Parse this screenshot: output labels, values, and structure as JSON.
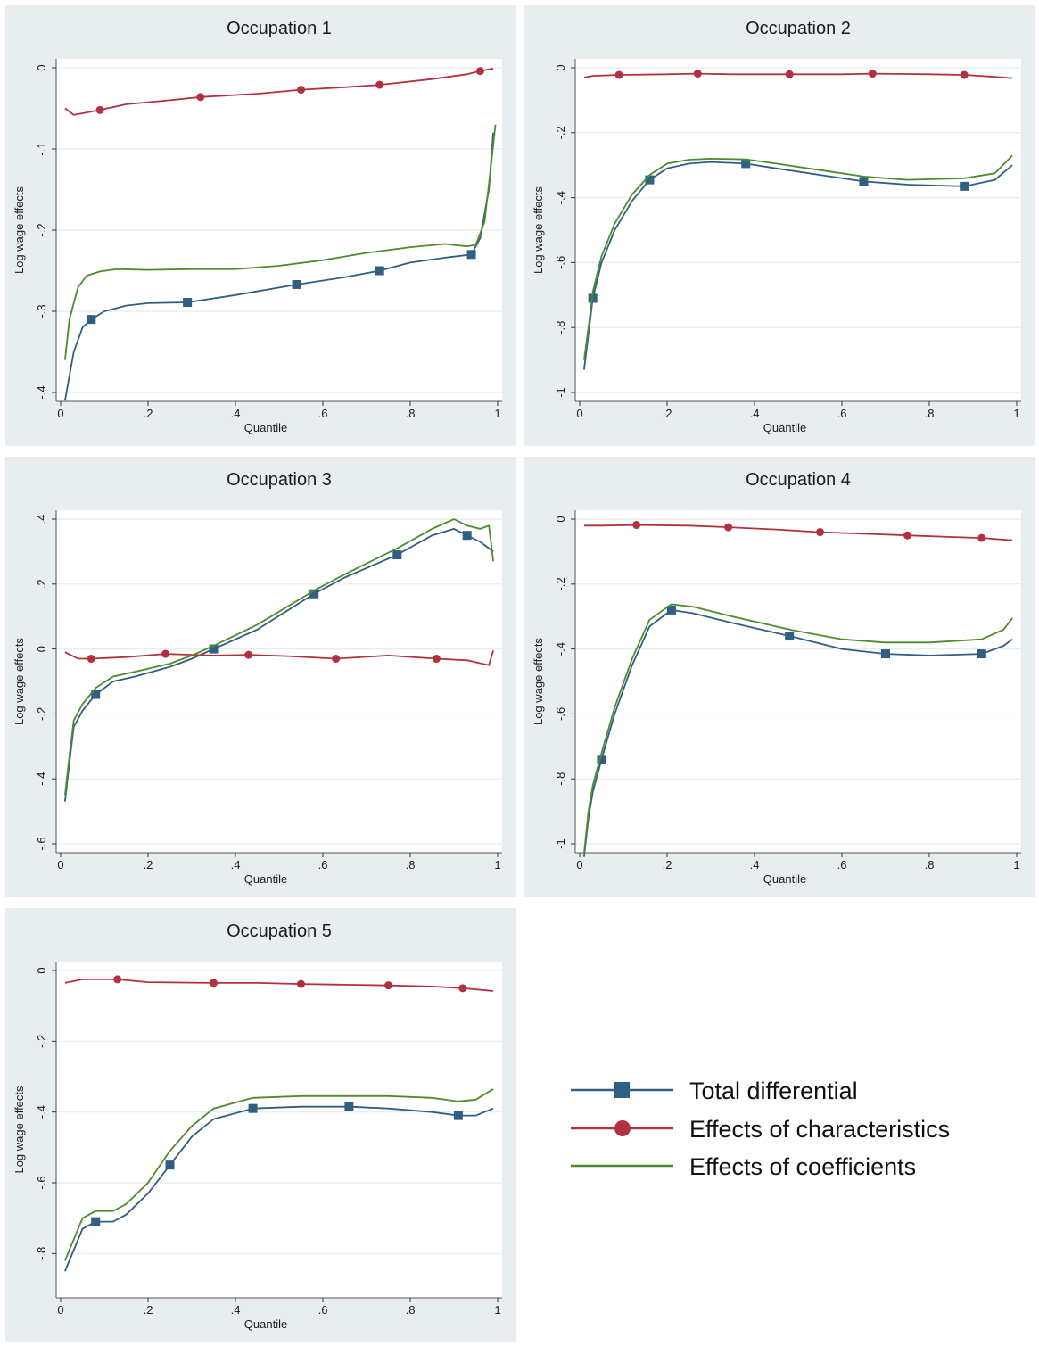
{
  "colors": {
    "panel_bg": "#e8eef0",
    "plot_bg": "#ffffff",
    "grid": "#e6ecef",
    "total": "#2f5f83",
    "characteristics": "#b2313f",
    "coefficients": "#4f8a2c"
  },
  "legend": {
    "items": [
      {
        "label": "Total differential",
        "marker": "square",
        "series": "total"
      },
      {
        "label": "Effects of characteristics",
        "marker": "circle",
        "series": "characteristics"
      },
      {
        "label": "Effects of coefficients",
        "marker": "none",
        "series": "coefficients"
      }
    ]
  },
  "chart_data": [
    {
      "type": "line",
      "title": "Occupation 1",
      "xlabel": "Quantile",
      "ylabel": "Log wage effects",
      "xlim": [
        0,
        1
      ],
      "ylim": [
        -0.4,
        0
      ],
      "xticks": [
        0,
        0.2,
        0.4,
        0.6,
        0.8,
        1
      ],
      "xtick_labels": [
        "0",
        ".2",
        ".4",
        ".6",
        ".8",
        "1"
      ],
      "yticks": [
        0,
        -0.1,
        -0.2,
        -0.3,
        -0.4
      ],
      "ytick_labels": [
        "0",
        "-.1",
        "-.2",
        "-.3",
        "-.4"
      ],
      "grid": true,
      "series": [
        {
          "key": "total",
          "marker": "square",
          "markers_at": [
            0.07,
            0.29,
            0.54,
            0.73,
            0.94
          ],
          "x": [
            0.01,
            0.03,
            0.05,
            0.07,
            0.1,
            0.15,
            0.2,
            0.29,
            0.4,
            0.54,
            0.65,
            0.73,
            0.8,
            0.88,
            0.94,
            0.96,
            0.98,
            0.99
          ],
          "y": [
            -0.41,
            -0.35,
            -0.32,
            -0.31,
            -0.3,
            -0.293,
            -0.29,
            -0.289,
            -0.28,
            -0.267,
            -0.258,
            -0.25,
            -0.24,
            -0.234,
            -0.23,
            -0.21,
            -0.15,
            -0.08
          ]
        },
        {
          "key": "characteristics",
          "marker": "circle",
          "markers_at": [
            0.09,
            0.32,
            0.55,
            0.73,
            0.96
          ],
          "x": [
            0.01,
            0.03,
            0.06,
            0.09,
            0.15,
            0.25,
            0.32,
            0.45,
            0.55,
            0.65,
            0.73,
            0.85,
            0.93,
            0.96,
            0.99
          ],
          "y": [
            -0.05,
            -0.058,
            -0.055,
            -0.052,
            -0.045,
            -0.04,
            -0.036,
            -0.032,
            -0.027,
            -0.024,
            -0.021,
            -0.014,
            -0.008,
            -0.004,
            -0.001
          ]
        },
        {
          "key": "coefficients",
          "marker": "none",
          "markers_at": [],
          "x": [
            0.01,
            0.02,
            0.04,
            0.06,
            0.09,
            0.13,
            0.2,
            0.3,
            0.4,
            0.5,
            0.6,
            0.7,
            0.8,
            0.88,
            0.93,
            0.95,
            0.97,
            0.985,
            0.995
          ],
          "y": [
            -0.36,
            -0.31,
            -0.27,
            -0.256,
            -0.251,
            -0.248,
            -0.249,
            -0.248,
            -0.248,
            -0.244,
            -0.237,
            -0.228,
            -0.221,
            -0.217,
            -0.22,
            -0.218,
            -0.19,
            -0.12,
            -0.07
          ]
        }
      ]
    },
    {
      "type": "line",
      "title": "Occupation 2",
      "xlabel": "Quantile",
      "ylabel": "Log wage effects",
      "xlim": [
        0,
        1
      ],
      "ylim": [
        -1,
        0
      ],
      "xticks": [
        0,
        0.2,
        0.4,
        0.6,
        0.8,
        1
      ],
      "xtick_labels": [
        "0",
        ".2",
        ".4",
        ".6",
        ".8",
        "1"
      ],
      "yticks": [
        0,
        -0.2,
        -0.4,
        -0.6,
        -0.8,
        -1
      ],
      "ytick_labels": [
        "0",
        "-.2",
        "-.4",
        "-.6",
        "-.8",
        "-1"
      ],
      "grid": true,
      "series": [
        {
          "key": "total",
          "marker": "square",
          "markers_at": [
            0.03,
            0.16,
            0.38,
            0.65,
            0.88
          ],
          "x": [
            0.01,
            0.02,
            0.03,
            0.05,
            0.08,
            0.12,
            0.16,
            0.2,
            0.25,
            0.3,
            0.38,
            0.45,
            0.55,
            0.65,
            0.75,
            0.88,
            0.95,
            0.99
          ],
          "y": [
            -0.93,
            -0.82,
            -0.71,
            -0.6,
            -0.5,
            -0.41,
            -0.345,
            -0.31,
            -0.295,
            -0.29,
            -0.295,
            -0.31,
            -0.33,
            -0.35,
            -0.36,
            -0.365,
            -0.345,
            -0.3
          ]
        },
        {
          "key": "characteristics",
          "marker": "circle",
          "markers_at": [
            0.09,
            0.27,
            0.48,
            0.67,
            0.88
          ],
          "x": [
            0.01,
            0.03,
            0.09,
            0.2,
            0.27,
            0.35,
            0.48,
            0.6,
            0.67,
            0.8,
            0.88,
            0.95,
            0.99
          ],
          "y": [
            -0.03,
            -0.025,
            -0.022,
            -0.02,
            -0.018,
            -0.02,
            -0.02,
            -0.02,
            -0.018,
            -0.02,
            -0.022,
            -0.028,
            -0.032
          ]
        },
        {
          "key": "coefficients",
          "marker": "none",
          "markers_at": [],
          "x": [
            0.01,
            0.02,
            0.03,
            0.05,
            0.08,
            0.12,
            0.16,
            0.2,
            0.25,
            0.3,
            0.38,
            0.45,
            0.55,
            0.65,
            0.75,
            0.88,
            0.95,
            0.99
          ],
          "y": [
            -0.9,
            -0.8,
            -0.69,
            -0.58,
            -0.48,
            -0.39,
            -0.33,
            -0.295,
            -0.283,
            -0.28,
            -0.282,
            -0.295,
            -0.315,
            -0.335,
            -0.345,
            -0.34,
            -0.325,
            -0.27
          ]
        }
      ]
    },
    {
      "type": "line",
      "title": "Occupation 3",
      "xlabel": "Quantile",
      "ylabel": "Log wage effects",
      "xlim": [
        0,
        1
      ],
      "ylim": [
        -0.6,
        0.4
      ],
      "xticks": [
        0,
        0.2,
        0.4,
        0.6,
        0.8,
        1
      ],
      "xtick_labels": [
        "0",
        ".2",
        ".4",
        ".6",
        ".8",
        "1"
      ],
      "yticks": [
        0.4,
        0.2,
        0,
        -0.2,
        -0.4,
        -0.6
      ],
      "ytick_labels": [
        ".4",
        ".2",
        "0",
        "-.2",
        "-.4",
        "-.6"
      ],
      "grid": true,
      "series": [
        {
          "key": "total",
          "marker": "square",
          "markers_at": [
            0.08,
            0.35,
            0.58,
            0.77,
            0.93
          ],
          "x": [
            0.01,
            0.02,
            0.03,
            0.05,
            0.08,
            0.12,
            0.17,
            0.25,
            0.3,
            0.35,
            0.45,
            0.58,
            0.65,
            0.77,
            0.85,
            0.9,
            0.93,
            0.96,
            0.99
          ],
          "y": [
            -0.47,
            -0.35,
            -0.24,
            -0.19,
            -0.14,
            -0.1,
            -0.085,
            -0.055,
            -0.03,
            0,
            0.06,
            0.17,
            0.22,
            0.29,
            0.35,
            0.37,
            0.35,
            0.33,
            0.3
          ]
        },
        {
          "key": "characteristics",
          "marker": "circle",
          "markers_at": [
            0.07,
            0.24,
            0.43,
            0.63,
            0.86
          ],
          "x": [
            0.01,
            0.04,
            0.07,
            0.15,
            0.24,
            0.35,
            0.43,
            0.52,
            0.63,
            0.75,
            0.86,
            0.93,
            0.98,
            0.99
          ],
          "y": [
            -0.01,
            -0.03,
            -0.03,
            -0.025,
            -0.015,
            -0.02,
            -0.018,
            -0.022,
            -0.03,
            -0.02,
            -0.03,
            -0.035,
            -0.05,
            -0.005
          ]
        },
        {
          "key": "coefficients",
          "marker": "none",
          "markers_at": [],
          "x": [
            0.01,
            0.02,
            0.03,
            0.05,
            0.08,
            0.12,
            0.17,
            0.25,
            0.3,
            0.35,
            0.45,
            0.58,
            0.65,
            0.77,
            0.85,
            0.9,
            0.93,
            0.96,
            0.98,
            0.99
          ],
          "y": [
            -0.45,
            -0.33,
            -0.22,
            -0.17,
            -0.12,
            -0.085,
            -0.07,
            -0.045,
            -0.02,
            0.01,
            0.075,
            0.18,
            0.23,
            0.31,
            0.37,
            0.4,
            0.38,
            0.37,
            0.38,
            0.27
          ]
        }
      ]
    },
    {
      "type": "line",
      "title": "Occupation 4",
      "xlabel": "Quantile",
      "ylabel": "Log wage effects",
      "xlim": [
        0,
        1
      ],
      "ylim": [
        -1,
        0
      ],
      "xticks": [
        0,
        0.2,
        0.4,
        0.6,
        0.8,
        1
      ],
      "xtick_labels": [
        "0",
        ".2",
        ".4",
        ".6",
        ".8",
        "1"
      ],
      "yticks": [
        0,
        -0.2,
        -0.4,
        -0.6,
        -0.8,
        -1
      ],
      "ytick_labels": [
        "0",
        "-.2",
        "-.4",
        "-.6",
        "-.8",
        "-1"
      ],
      "grid": true,
      "series": [
        {
          "key": "total",
          "marker": "square",
          "markers_at": [
            0.05,
            0.21,
            0.48,
            0.7,
            0.92
          ],
          "x": [
            0.01,
            0.02,
            0.03,
            0.05,
            0.08,
            0.12,
            0.16,
            0.21,
            0.26,
            0.35,
            0.48,
            0.6,
            0.7,
            0.8,
            0.92,
            0.97,
            0.99
          ],
          "y": [
            -1.04,
            -0.92,
            -0.84,
            -0.74,
            -0.6,
            -0.45,
            -0.33,
            -0.28,
            -0.29,
            -0.32,
            -0.36,
            -0.4,
            -0.415,
            -0.42,
            -0.415,
            -0.39,
            -0.37
          ]
        },
        {
          "key": "characteristics",
          "marker": "circle",
          "markers_at": [
            0.13,
            0.34,
            0.55,
            0.75,
            0.92
          ],
          "x": [
            0.01,
            0.05,
            0.13,
            0.25,
            0.34,
            0.45,
            0.55,
            0.65,
            0.75,
            0.85,
            0.92,
            0.99
          ],
          "y": [
            -0.02,
            -0.02,
            -0.018,
            -0.02,
            -0.025,
            -0.032,
            -0.04,
            -0.045,
            -0.05,
            -0.055,
            -0.058,
            -0.065
          ]
        },
        {
          "key": "coefficients",
          "marker": "none",
          "markers_at": [],
          "x": [
            0.01,
            0.02,
            0.03,
            0.05,
            0.08,
            0.12,
            0.16,
            0.21,
            0.26,
            0.35,
            0.48,
            0.6,
            0.7,
            0.8,
            0.92,
            0.97,
            0.99
          ],
          "y": [
            -1.03,
            -0.9,
            -0.82,
            -0.72,
            -0.58,
            -0.43,
            -0.31,
            -0.262,
            -0.27,
            -0.3,
            -0.34,
            -0.37,
            -0.38,
            -0.38,
            -0.37,
            -0.34,
            -0.305
          ]
        }
      ]
    },
    {
      "type": "line",
      "title": "Occupation 5",
      "xlabel": "Quantile",
      "ylabel": "Log wage effects",
      "xlim": [
        0,
        1
      ],
      "ylim": [
        -0.9,
        0
      ],
      "xticks": [
        0,
        0.2,
        0.4,
        0.6,
        0.8,
        1
      ],
      "xtick_labels": [
        "0",
        ".2",
        ".4",
        ".6",
        ".8",
        "1"
      ],
      "yticks": [
        0,
        -0.2,
        -0.4,
        -0.6,
        -0.8
      ],
      "ytick_labels": [
        "0",
        "-.2",
        "-.4",
        "-.6",
        "-.8"
      ],
      "grid": true,
      "series": [
        {
          "key": "total",
          "marker": "square",
          "markers_at": [
            0.08,
            0.25,
            0.44,
            0.66,
            0.91
          ],
          "x": [
            0.01,
            0.03,
            0.05,
            0.08,
            0.12,
            0.15,
            0.2,
            0.25,
            0.3,
            0.35,
            0.44,
            0.55,
            0.66,
            0.75,
            0.85,
            0.91,
            0.95,
            0.99
          ],
          "y": [
            -0.85,
            -0.79,
            -0.73,
            -0.71,
            -0.71,
            -0.69,
            -0.63,
            -0.55,
            -0.47,
            -0.42,
            -0.39,
            -0.385,
            -0.385,
            -0.39,
            -0.4,
            -0.41,
            -0.41,
            -0.39
          ]
        },
        {
          "key": "characteristics",
          "marker": "circle",
          "markers_at": [
            0.13,
            0.35,
            0.55,
            0.75,
            0.92
          ],
          "x": [
            0.01,
            0.05,
            0.13,
            0.2,
            0.35,
            0.45,
            0.55,
            0.65,
            0.75,
            0.85,
            0.92,
            0.99
          ],
          "y": [
            -0.035,
            -0.025,
            -0.025,
            -0.033,
            -0.035,
            -0.035,
            -0.038,
            -0.04,
            -0.042,
            -0.045,
            -0.05,
            -0.058
          ]
        },
        {
          "key": "coefficients",
          "marker": "none",
          "markers_at": [],
          "x": [
            0.01,
            0.03,
            0.05,
            0.08,
            0.12,
            0.15,
            0.2,
            0.25,
            0.3,
            0.35,
            0.44,
            0.55,
            0.66,
            0.75,
            0.85,
            0.91,
            0.95,
            0.99
          ],
          "y": [
            -0.82,
            -0.76,
            -0.7,
            -0.68,
            -0.68,
            -0.66,
            -0.6,
            -0.51,
            -0.44,
            -0.39,
            -0.36,
            -0.355,
            -0.355,
            -0.355,
            -0.36,
            -0.37,
            -0.365,
            -0.335
          ]
        }
      ]
    }
  ]
}
